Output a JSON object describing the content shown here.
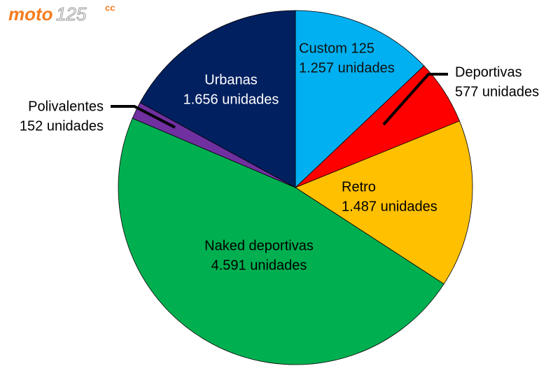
{
  "logo": {
    "text": "moto",
    "number": "125",
    "suffix": "cc"
  },
  "chart_data": {
    "type": "pie",
    "categories": [
      "Custom 125",
      "Deportivas",
      "Retro",
      "Naked deportivas",
      "Polivalentes",
      "Urbanas"
    ],
    "values": [
      1257,
      577,
      1487,
      4591,
      152,
      1656
    ],
    "value_labels": [
      "1.257 unidades",
      "577 unidades",
      "1.487 unidades",
      "4.591 unidades",
      "152 unidades",
      "1.656 unidades"
    ],
    "colors": [
      "#00b0f0",
      "#ff0000",
      "#ffc000",
      "#00b050",
      "#7030a0",
      "#002060"
    ]
  }
}
